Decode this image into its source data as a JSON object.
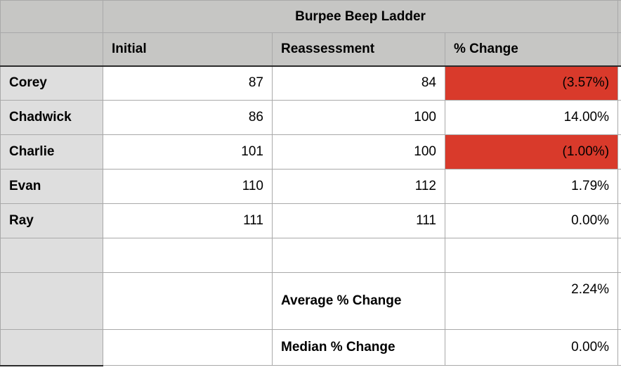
{
  "chart_data": {
    "type": "table",
    "title": "Burpee Beep Ladder",
    "columns": [
      "Initial",
      "Reassessment",
      "% Change"
    ],
    "rows": [
      {
        "name": "Corey",
        "initial": "87",
        "reassessment": "84",
        "pct_change": "(3.57%)",
        "negative": true
      },
      {
        "name": "Chadwick",
        "initial": "86",
        "reassessment": "100",
        "pct_change": "14.00%",
        "negative": false
      },
      {
        "name": "Charlie",
        "initial": "101",
        "reassessment": "100",
        "pct_change": "(1.00%)",
        "negative": true
      },
      {
        "name": "Evan",
        "initial": "110",
        "reassessment": "112",
        "pct_change": "1.79%",
        "negative": false
      },
      {
        "name": "Ray",
        "initial": "111",
        "reassessment": "111",
        "pct_change": "0.00%",
        "negative": false
      }
    ],
    "summary_rows": [
      {
        "label": "Average % Change",
        "value": "2.24%"
      },
      {
        "label": "Median % Change",
        "value": "0.00%"
      }
    ],
    "colors": {
      "negative_bg": "#d93a2b",
      "header_bg": "#c6c6c4",
      "row_label_bg": "#dedede"
    }
  }
}
